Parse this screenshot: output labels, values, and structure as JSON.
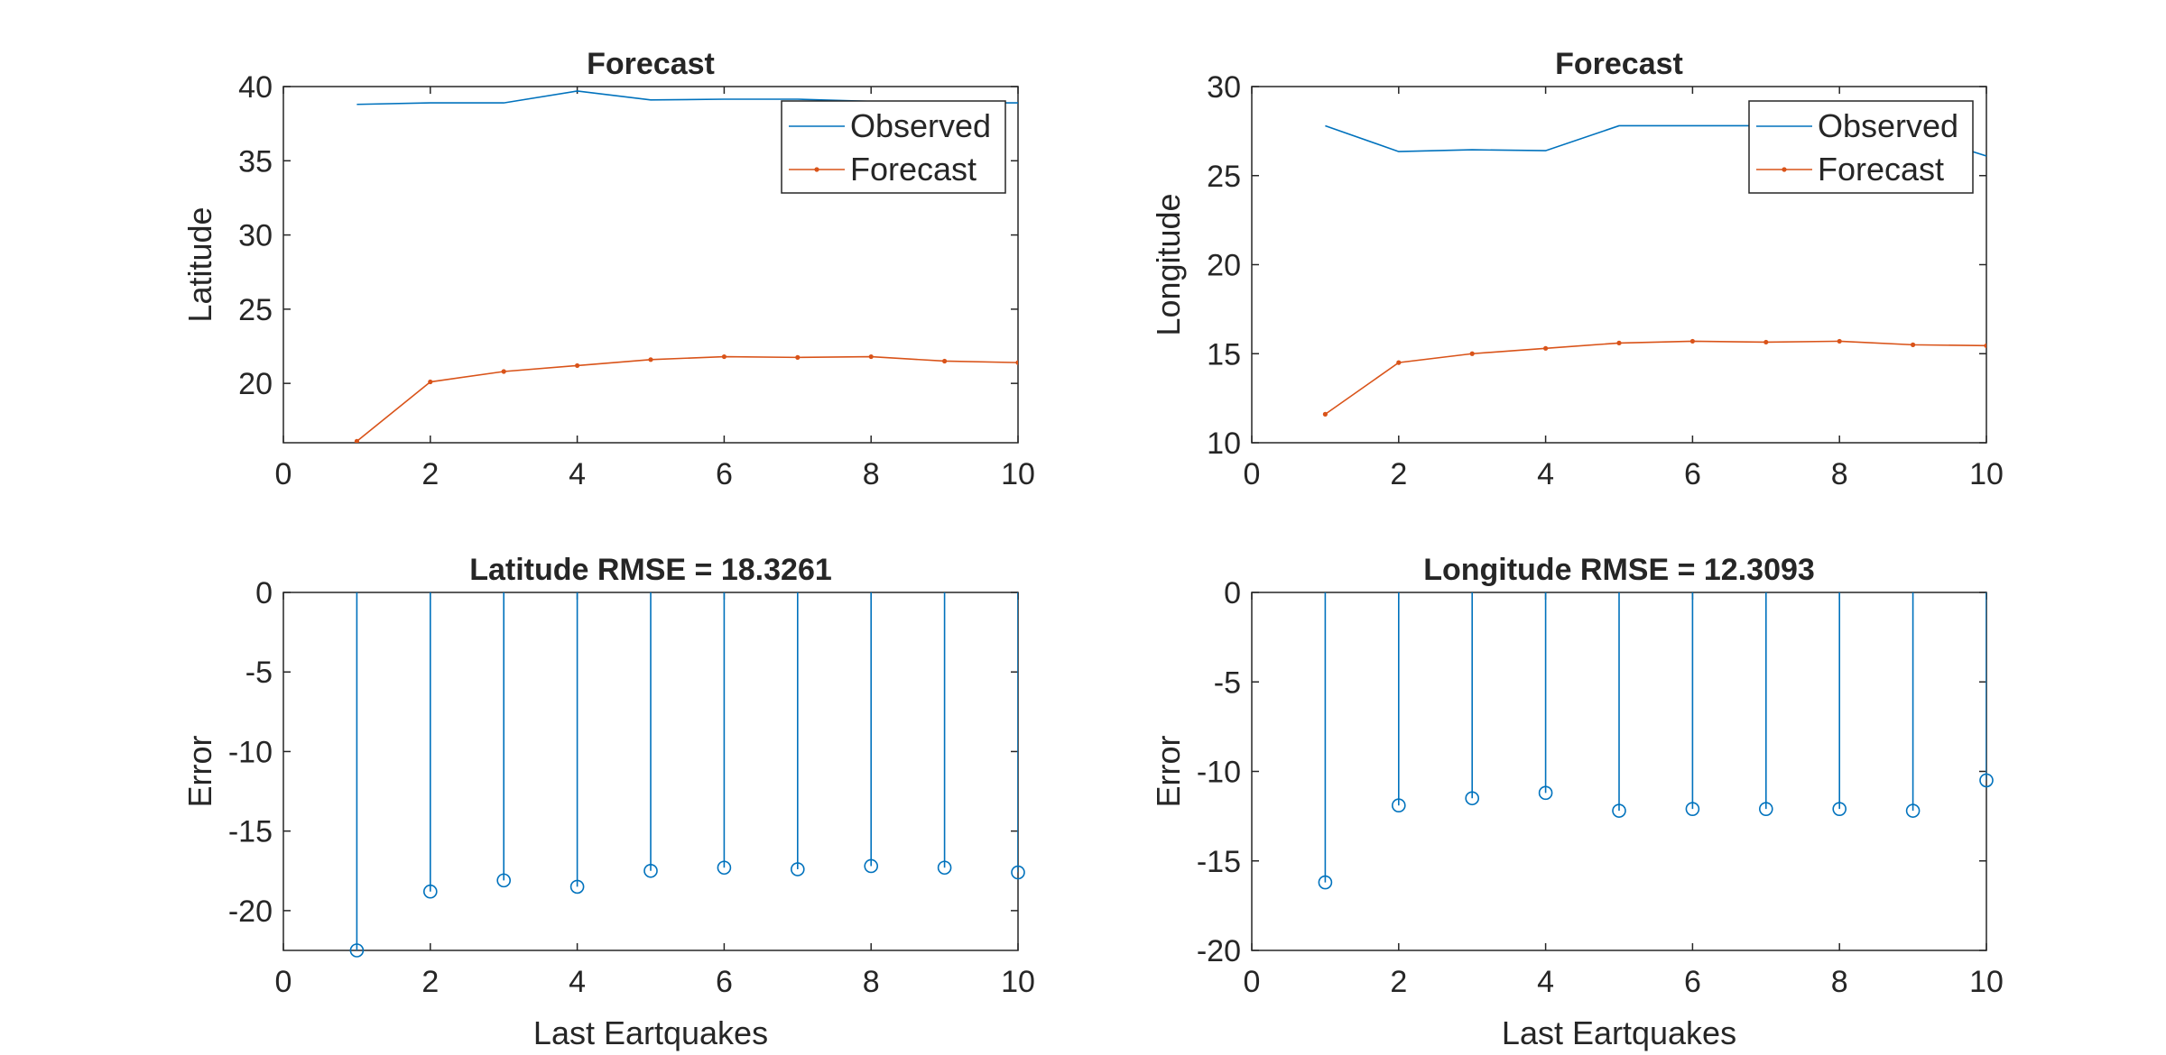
{
  "colors": {
    "observed": "#0072BD",
    "forecast": "#D95319",
    "axis": "#262626"
  },
  "chart_data": [
    {
      "type": "line",
      "title": "Forecast",
      "xlabel": "",
      "ylabel": "Latitude",
      "xlim": [
        0,
        10
      ],
      "ylim": [
        16,
        40
      ],
      "xticks": [
        "0",
        "2",
        "4",
        "6",
        "8",
        "10"
      ],
      "yticks": [
        "20",
        "25",
        "30",
        "35",
        "40"
      ],
      "legend_position": "top-right",
      "x": [
        1,
        2,
        3,
        4,
        5,
        6,
        7,
        8,
        9,
        10
      ],
      "series": [
        {
          "name": "Observed",
          "color": "#0072BD",
          "marker": "none",
          "values": [
            38.8,
            38.9,
            38.9,
            39.7,
            39.1,
            39.15,
            39.15,
            39.0,
            38.9,
            38.9
          ]
        },
        {
          "name": "Forecast",
          "color": "#D95319",
          "marker": "dot",
          "values": [
            16.1,
            20.1,
            20.8,
            21.2,
            21.6,
            21.8,
            21.75,
            21.8,
            21.5,
            21.4
          ]
        }
      ]
    },
    {
      "type": "line",
      "title": "Forecast",
      "xlabel": "",
      "ylabel": "Longitude",
      "xlim": [
        0,
        10
      ],
      "ylim": [
        10,
        30
      ],
      "xticks": [
        "0",
        "2",
        "4",
        "6",
        "8",
        "10"
      ],
      "yticks": [
        "10",
        "15",
        "20",
        "25",
        "30"
      ],
      "legend_position": "top-right",
      "x": [
        1,
        2,
        3,
        4,
        5,
        6,
        7,
        8,
        9,
        10
      ],
      "series": [
        {
          "name": "Observed",
          "color": "#0072BD",
          "marker": "none",
          "values": [
            27.8,
            26.35,
            26.45,
            26.4,
            27.8,
            27.8,
            27.8,
            27.8,
            27.4,
            26.1
          ]
        },
        {
          "name": "Forecast",
          "color": "#D95319",
          "marker": "dot",
          "values": [
            11.6,
            14.5,
            15.0,
            15.3,
            15.6,
            15.7,
            15.65,
            15.7,
            15.5,
            15.45
          ]
        }
      ]
    },
    {
      "type": "stem",
      "title": "Latitude RMSE = 18.3261",
      "xlabel": "Last Eartquakes",
      "ylabel": "Error",
      "xlim": [
        0,
        10
      ],
      "ylim": [
        -22.5,
        0
      ],
      "xticks": [
        "0",
        "2",
        "4",
        "6",
        "8",
        "10"
      ],
      "yticks": [
        "0",
        "-5",
        "-10",
        "-15",
        "-20"
      ],
      "x": [
        1,
        2,
        3,
        4,
        5,
        6,
        7,
        8,
        9,
        10
      ],
      "series": [
        {
          "color": "#0072BD",
          "marker": "circle",
          "values": [
            -22.5,
            -18.8,
            -18.1,
            -18.5,
            -17.5,
            -17.3,
            -17.4,
            -17.2,
            -17.3,
            -17.6
          ]
        }
      ]
    },
    {
      "type": "stem",
      "title": "Longitude RMSE = 12.3093",
      "xlabel": "Last Eartquakes",
      "ylabel": "Error",
      "xlim": [
        0,
        10
      ],
      "ylim": [
        -20,
        0
      ],
      "xticks": [
        "0",
        "2",
        "4",
        "6",
        "8",
        "10"
      ],
      "yticks": [
        "0",
        "-5",
        "-10",
        "-15",
        "-20"
      ],
      "x": [
        1,
        2,
        3,
        4,
        5,
        6,
        7,
        8,
        9,
        10
      ],
      "series": [
        {
          "color": "#0072BD",
          "marker": "circle",
          "values": [
            -16.2,
            -11.9,
            -11.5,
            -11.2,
            -12.2,
            -12.1,
            -12.1,
            -12.1,
            -12.2,
            -10.5
          ]
        }
      ]
    }
  ]
}
